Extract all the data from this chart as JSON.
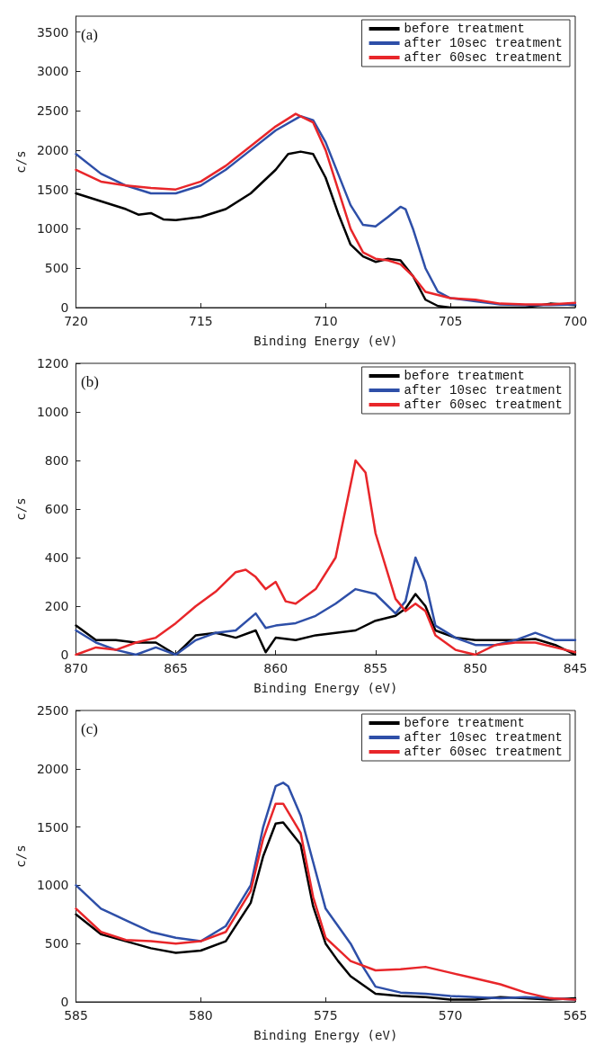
{
  "chart_data": [
    {
      "type": "line",
      "xlabel": "Binding Energy (eV)",
      "ylabel": "c/s",
      "annotations": [
        "(a)"
      ],
      "legend": "top right",
      "marker": "none",
      "line_style": "solid",
      "xlim": [
        720,
        700
      ],
      "xticks": [
        720,
        715,
        710,
        705,
        700
      ],
      "ylim": [
        0,
        3700
      ],
      "yticks": [
        0,
        500,
        1000,
        1500,
        2000,
        2500,
        3000,
        3500
      ],
      "series": [
        {
          "name": "before treatment",
          "color": "#000000",
          "x": [
            720,
            719,
            718,
            717.5,
            717,
            716.5,
            716,
            715,
            714,
            713,
            712,
            711.5,
            711,
            710.5,
            710,
            709.5,
            709,
            708.5,
            708,
            707.5,
            707,
            706.5,
            706,
            705.5,
            705,
            704,
            702,
            701,
            700
          ],
          "values": [
            1450,
            1350,
            1250,
            1180,
            1200,
            1120,
            1110,
            1150,
            1250,
            1450,
            1750,
            1950,
            1980,
            1950,
            1650,
            1200,
            800,
            650,
            580,
            620,
            600,
            400,
            100,
            20,
            0,
            0,
            0,
            50,
            30
          ]
        },
        {
          "name": "after 10sec treatment",
          "color": "#2e4fa8",
          "x": [
            720,
            719,
            718,
            717,
            716,
            715,
            714,
            713,
            712,
            711,
            710.5,
            710,
            709.5,
            709,
            708.5,
            708,
            707.5,
            707,
            706.8,
            706.5,
            706,
            705.5,
            705,
            704,
            703,
            702,
            701,
            700
          ],
          "values": [
            1950,
            1700,
            1550,
            1450,
            1450,
            1550,
            1750,
            2000,
            2250,
            2430,
            2380,
            2100,
            1700,
            1300,
            1050,
            1030,
            1150,
            1280,
            1250,
            1000,
            500,
            200,
            120,
            80,
            40,
            30,
            30,
            40
          ]
        },
        {
          "name": "after 60sec treatment",
          "color": "#e8262a",
          "x": [
            720,
            719,
            718,
            717,
            716,
            715,
            714,
            713,
            712,
            711.2,
            710.5,
            710,
            709.5,
            709,
            708.5,
            708,
            707.5,
            707,
            706.5,
            706,
            705,
            704,
            703,
            702,
            701,
            700
          ],
          "values": [
            1750,
            1600,
            1550,
            1520,
            1500,
            1600,
            1800,
            2050,
            2300,
            2460,
            2350,
            2000,
            1500,
            1000,
            700,
            620,
            600,
            550,
            400,
            200,
            120,
            100,
            50,
            40,
            40,
            60
          ]
        }
      ]
    },
    {
      "type": "line",
      "xlabel": "Binding Energy (eV)",
      "ylabel": "c/s",
      "annotations": [
        "(b)"
      ],
      "legend": "top right",
      "marker": "none",
      "line_style": "solid",
      "xlim": [
        870,
        845
      ],
      "xticks": [
        870,
        865,
        860,
        855,
        850,
        845
      ],
      "ylim": [
        0,
        1200
      ],
      "yticks": [
        0,
        200,
        400,
        600,
        800,
        1000,
        1200
      ],
      "series": [
        {
          "name": "before treatment",
          "color": "#000000",
          "x": [
            870,
            869,
            868,
            867,
            866,
            865,
            864,
            863,
            862,
            861,
            860.5,
            860,
            859,
            858,
            857,
            856,
            855,
            854,
            853.5,
            853,
            852.5,
            852,
            851,
            850,
            849,
            848,
            847,
            846,
            845
          ],
          "values": [
            120,
            60,
            60,
            50,
            50,
            0,
            80,
            90,
            70,
            100,
            10,
            70,
            60,
            80,
            90,
            100,
            140,
            160,
            190,
            250,
            200,
            100,
            70,
            60,
            60,
            60,
            65,
            40,
            0
          ]
        },
        {
          "name": "after 10sec treatment",
          "color": "#2e4fa8",
          "x": [
            870,
            869,
            868,
            867,
            866,
            865,
            864,
            863,
            862,
            861,
            860.5,
            860,
            859,
            858,
            857,
            856,
            855,
            854,
            853.5,
            853,
            852.5,
            852,
            851,
            850,
            849,
            848,
            847,
            846,
            845
          ],
          "values": [
            100,
            50,
            20,
            0,
            30,
            0,
            60,
            90,
            100,
            170,
            110,
            120,
            130,
            160,
            210,
            270,
            250,
            170,
            220,
            400,
            300,
            120,
            70,
            40,
            40,
            60,
            90,
            60,
            60
          ]
        },
        {
          "name": "after 60sec treatment",
          "color": "#e8262a",
          "x": [
            870,
            869,
            868,
            867,
            866,
            865,
            864,
            863,
            862,
            861.5,
            861,
            860.5,
            860,
            859.5,
            859,
            858,
            857,
            856.5,
            856,
            855.5,
            855,
            854,
            853.5,
            853,
            852.5,
            852,
            851,
            850,
            849,
            848,
            847,
            846,
            845
          ],
          "values": [
            0,
            30,
            20,
            50,
            70,
            130,
            200,
            260,
            340,
            350,
            320,
            270,
            300,
            220,
            210,
            270,
            400,
            600,
            800,
            750,
            500,
            230,
            180,
            210,
            180,
            80,
            20,
            0,
            40,
            50,
            50,
            30,
            10
          ]
        }
      ]
    },
    {
      "type": "line",
      "xlabel": "Binding Energy (eV)",
      "ylabel": "c/s",
      "annotations": [
        "(c)"
      ],
      "legend": "top right",
      "marker": "none",
      "line_style": "solid",
      "xlim": [
        585,
        565
      ],
      "xticks": [
        585,
        580,
        575,
        570,
        565
      ],
      "ylim": [
        0,
        2500
      ],
      "yticks": [
        0,
        500,
        1000,
        1500,
        2000,
        2500
      ],
      "series": [
        {
          "name": "before treatment",
          "color": "#000000",
          "x": [
            585,
            584,
            583,
            582,
            581,
            580,
            579,
            578,
            577.5,
            577,
            576.7,
            576,
            575.5,
            575,
            574.5,
            574,
            573,
            572,
            571,
            570,
            569,
            568,
            567,
            566,
            565
          ],
          "values": [
            750,
            580,
            520,
            460,
            420,
            440,
            520,
            850,
            1250,
            1530,
            1540,
            1350,
            820,
            500,
            350,
            220,
            70,
            50,
            40,
            20,
            20,
            40,
            30,
            20,
            30
          ]
        },
        {
          "name": "after 10sec treatment",
          "color": "#2e4fa8",
          "x": [
            585,
            584,
            583,
            582,
            581,
            580,
            579,
            578,
            577.5,
            577,
            576.7,
            576.5,
            576,
            575.5,
            575,
            574.5,
            574,
            573.5,
            573,
            572,
            571,
            570,
            569,
            568,
            567,
            566,
            565
          ],
          "values": [
            1000,
            800,
            700,
            600,
            550,
            520,
            650,
            1000,
            1500,
            1850,
            1880,
            1850,
            1600,
            1200,
            800,
            650,
            500,
            300,
            130,
            80,
            70,
            50,
            40,
            30,
            40,
            30,
            20
          ]
        },
        {
          "name": "after 60sec treatment",
          "color": "#e8262a",
          "x": [
            585,
            584,
            583,
            582,
            581,
            580,
            579,
            578,
            577.5,
            577,
            576.7,
            576,
            575.5,
            575,
            574.5,
            574,
            573,
            572,
            571,
            570,
            569,
            568,
            567,
            566,
            565
          ],
          "values": [
            800,
            600,
            530,
            520,
            500,
            520,
            600,
            950,
            1400,
            1700,
            1700,
            1450,
            900,
            550,
            450,
            350,
            270,
            280,
            300,
            250,
            200,
            150,
            80,
            30,
            20
          ]
        }
      ]
    }
  ]
}
